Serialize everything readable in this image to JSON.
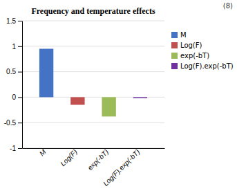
{
  "chart_data": {
    "type": "bar",
    "title": "Frequency and temperature effects",
    "categories": [
      "M",
      "Log(F)",
      "exp(-bT)",
      "Log(F).exp(-bT)"
    ],
    "values": [
      0.95,
      -0.15,
      -0.38,
      -0.02
    ],
    "colors": [
      "#4472C4",
      "#C0504D",
      "#9BBB59",
      "#7030A0"
    ],
    "ylim": [
      -1.0,
      1.5
    ],
    "yticks": [
      -1,
      -0.5,
      0,
      0.5,
      1,
      1.5
    ],
    "grid": true,
    "legend": "right",
    "annotation": "(8)"
  }
}
